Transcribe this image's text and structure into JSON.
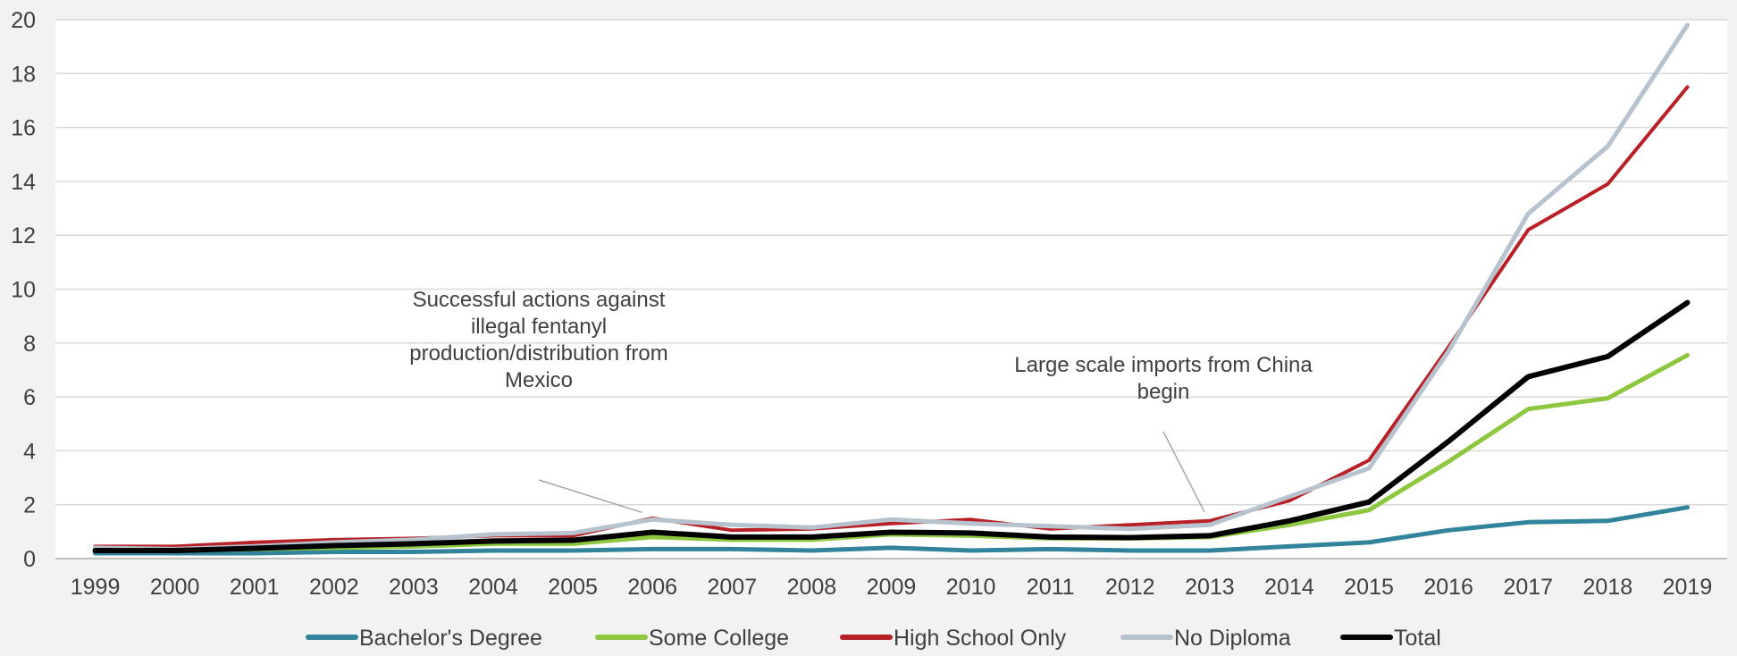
{
  "chart_data": {
    "type": "line",
    "x": [
      "1999",
      "2000",
      "2001",
      "2002",
      "2003",
      "2004",
      "2005",
      "2006",
      "2007",
      "2008",
      "2009",
      "2010",
      "2011",
      "2012",
      "2013",
      "2014",
      "2015",
      "2016",
      "2017",
      "2018",
      "2019"
    ],
    "ylim": [
      0,
      20
    ],
    "y_ticks": [
      "0",
      "2",
      "4",
      "6",
      "8",
      "10",
      "12",
      "14",
      "16",
      "18",
      "20"
    ],
    "grid": true,
    "legend_position": "bottom",
    "series": [
      {
        "name": "Bachelor's Degree",
        "color": "#31849b",
        "values": [
          0.2,
          0.2,
          0.2,
          0.25,
          0.25,
          0.3,
          0.3,
          0.35,
          0.35,
          0.3,
          0.4,
          0.3,
          0.35,
          0.3,
          0.3,
          0.45,
          0.6,
          1.05,
          1.35,
          1.4,
          1.9
        ]
      },
      {
        "name": "Some College",
        "color": "#8dc63f",
        "values": [
          0.3,
          0.3,
          0.35,
          0.4,
          0.45,
          0.55,
          0.55,
          0.8,
          0.7,
          0.7,
          0.9,
          0.85,
          0.75,
          0.75,
          0.8,
          1.25,
          1.8,
          3.6,
          5.55,
          5.95,
          7.55
        ]
      },
      {
        "name": "High School Only",
        "color": "#b82025",
        "values": [
          0.45,
          0.45,
          0.6,
          0.7,
          0.75,
          0.85,
          0.85,
          1.5,
          1.05,
          1.1,
          1.3,
          1.45,
          1.1,
          1.25,
          1.4,
          2.15,
          3.65,
          7.85,
          12.2,
          13.9,
          17.5
        ]
      },
      {
        "name": "No Diploma",
        "color": "#b6c3ce",
        "values": [
          0.4,
          0.35,
          0.45,
          0.6,
          0.7,
          0.9,
          0.95,
          1.45,
          1.25,
          1.15,
          1.45,
          1.3,
          1.2,
          1.1,
          1.25,
          2.3,
          3.35,
          7.7,
          12.8,
          15.3,
          19.8
        ]
      },
      {
        "name": "Total",
        "color": "#000000",
        "values": [
          0.3,
          0.3,
          0.38,
          0.48,
          0.55,
          0.65,
          0.68,
          0.98,
          0.8,
          0.8,
          0.98,
          0.95,
          0.8,
          0.78,
          0.85,
          1.4,
          2.1,
          4.35,
          6.75,
          7.5,
          9.5
        ]
      }
    ],
    "annotations": [
      {
        "text": [
          "Successful actions against",
          "illegal fentanyl",
          "production/distribution from",
          "Mexico"
        ],
        "x": "2006",
        "y": 1.45
      },
      {
        "text": [
          "Large scale imports from China",
          "begin"
        ],
        "x": "2013",
        "y": 1.4
      }
    ]
  }
}
